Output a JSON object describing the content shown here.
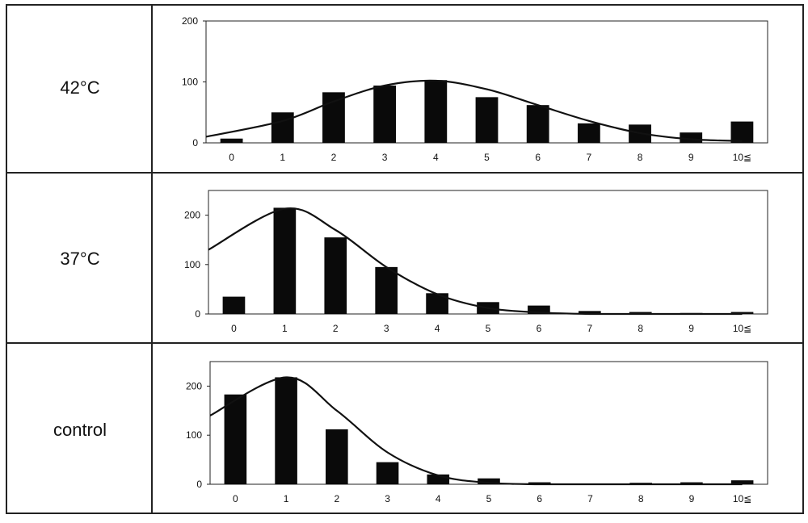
{
  "rows": [
    {
      "label": "42°C"
    },
    {
      "label": "37°C"
    },
    {
      "label": "control"
    }
  ],
  "colors": {
    "bar": "#0a0a0a",
    "curve": "#111111",
    "frame": "#222222",
    "background": "#ffffff"
  },
  "chart_data": [
    {
      "type": "bar",
      "title": "",
      "xlabel": "",
      "ylabel": "",
      "categories": [
        "0",
        "1",
        "2",
        "3",
        "4",
        "5",
        "6",
        "7",
        "8",
        "9",
        "10≦"
      ],
      "values": [
        7,
        50,
        83,
        94,
        103,
        75,
        62,
        32,
        30,
        17,
        35
      ],
      "fit_curve": [
        10,
        36,
        68,
        94,
        102,
        88,
        62,
        36,
        16,
        6,
        3
      ],
      "ylim": [
        0,
        200
      ],
      "yticks": [
        0,
        100,
        200
      ],
      "grid": false
    },
    {
      "type": "bar",
      "title": "",
      "xlabel": "",
      "ylabel": "",
      "categories": [
        "0",
        "1",
        "2",
        "3",
        "4",
        "5",
        "6",
        "7",
        "8",
        "9",
        "10≦"
      ],
      "values": [
        35,
        215,
        155,
        95,
        42,
        24,
        17,
        6,
        4,
        2,
        4
      ],
      "fit_curve": [
        130,
        213,
        170,
        95,
        40,
        12,
        3,
        0,
        0,
        0,
        0
      ],
      "ylim": [
        0,
        250
      ],
      "yticks": [
        0,
        100,
        200
      ],
      "grid": false
    },
    {
      "type": "bar",
      "title": "",
      "xlabel": "",
      "ylabel": "",
      "categories": [
        "0",
        "1",
        "2",
        "3",
        "4",
        "5",
        "6",
        "7",
        "8",
        "9",
        "10≦"
      ],
      "values": [
        183,
        218,
        112,
        45,
        20,
        12,
        4,
        1,
        3,
        4,
        8
      ],
      "fit_curve": [
        140,
        218,
        150,
        65,
        18,
        3,
        0,
        0,
        0,
        0,
        0
      ],
      "ylim": [
        0,
        250
      ],
      "yticks": [
        0,
        100,
        200
      ],
      "grid": false
    }
  ]
}
